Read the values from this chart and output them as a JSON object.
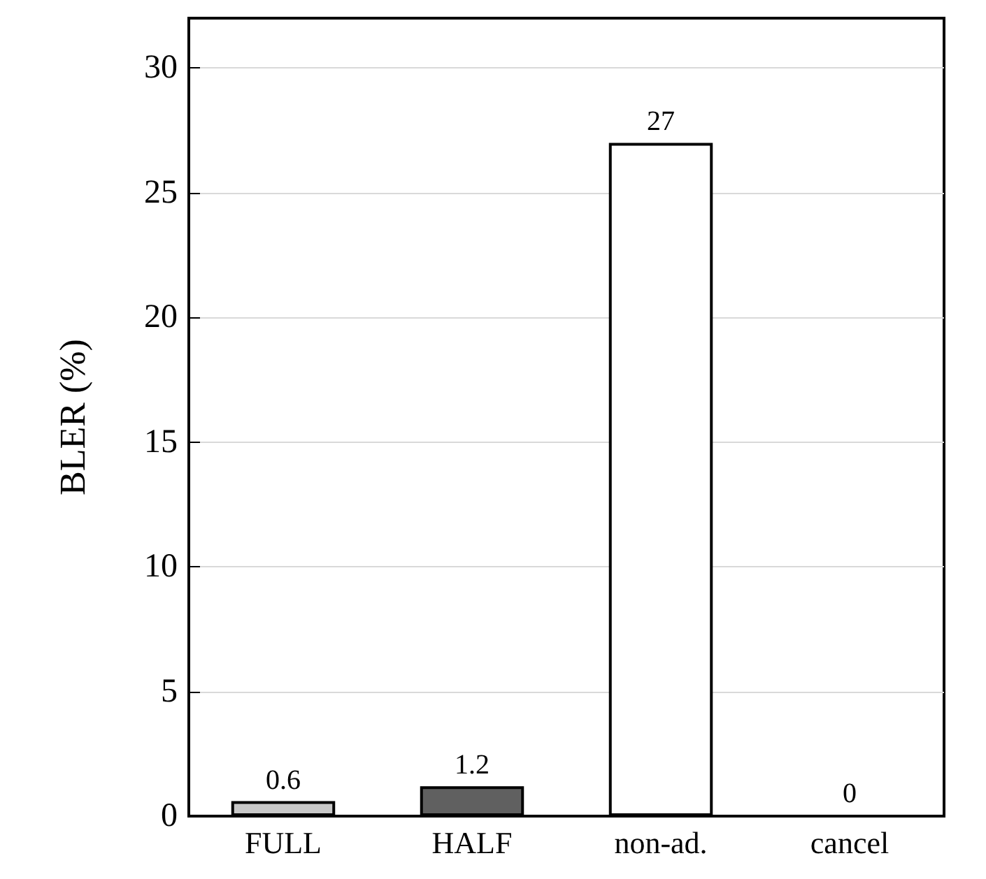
{
  "chart_data": {
    "type": "bar",
    "ylabel": "BLER (%)",
    "categories": [
      "FULL",
      "HALF",
      "non-ad.",
      "cancel"
    ],
    "values": [
      0.6,
      1.2,
      27,
      0
    ],
    "colors": [
      "#c8c8c8",
      "#606060",
      "#ffffff",
      "#000000"
    ],
    "ylim": [
      0,
      32
    ],
    "yticks": [
      0,
      5,
      10,
      15,
      20,
      25,
      30
    ],
    "grid": "y",
    "data_labels": true
  }
}
